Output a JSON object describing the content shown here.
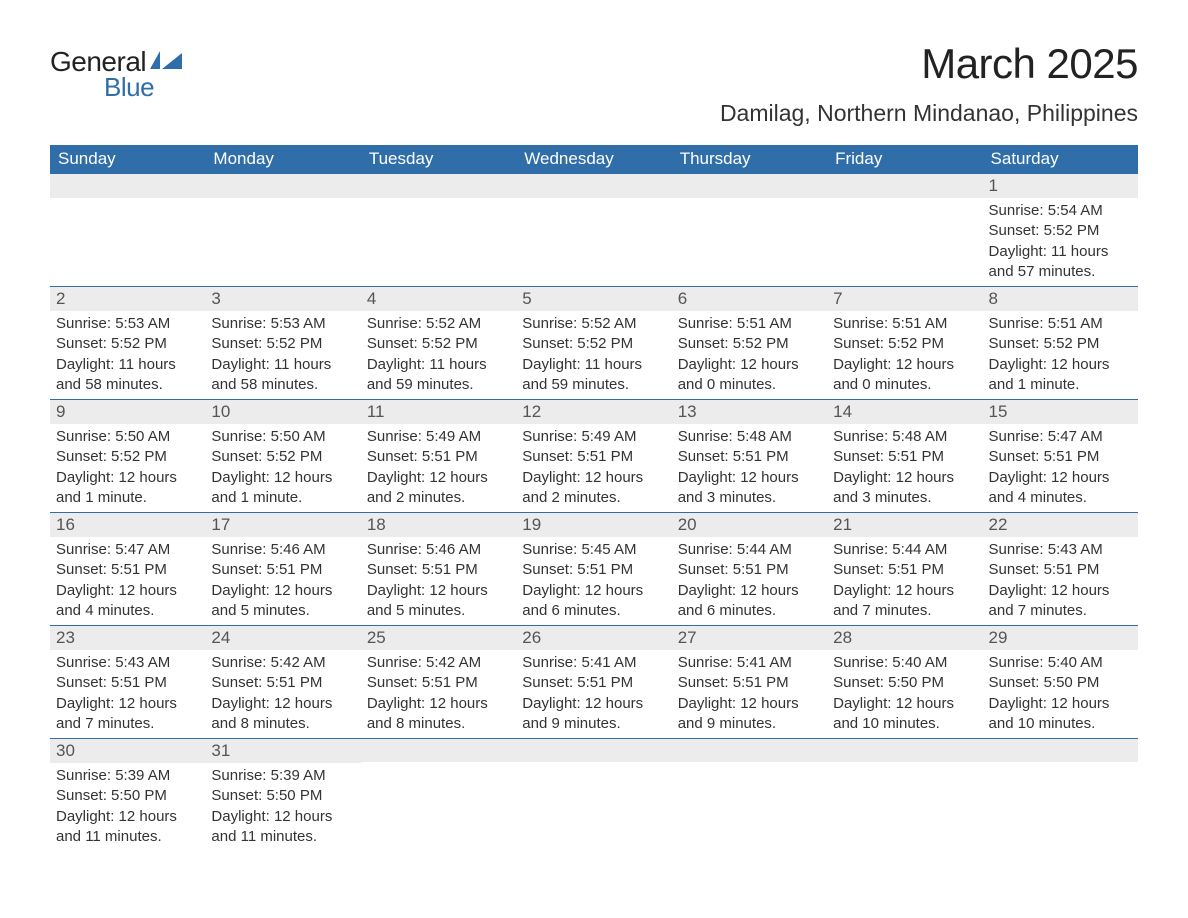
{
  "logo": {
    "text1": "General",
    "text2": "Blue",
    "flag_color": "#2f6ea9"
  },
  "title": "March 2025",
  "location": "Damilag, Northern Mindanao, Philippines",
  "colors": {
    "header_bg": "#2f6ea9",
    "header_text": "#ffffff",
    "daynum_bg": "#ececec",
    "daynum_text": "#555555",
    "body_text": "#333333",
    "row_divider": "#2f6ea9",
    "page_bg": "#ffffff"
  },
  "typography": {
    "title_fontsize": 42,
    "location_fontsize": 23,
    "header_fontsize": 17,
    "daynum_fontsize": 17,
    "detail_fontsize": 15,
    "font_family": "Arial"
  },
  "dayHeaders": [
    "Sunday",
    "Monday",
    "Tuesday",
    "Wednesday",
    "Thursday",
    "Friday",
    "Saturday"
  ],
  "weeks": [
    [
      null,
      null,
      null,
      null,
      null,
      null,
      {
        "n": "1",
        "sr": "5:54 AM",
        "ss": "5:52 PM",
        "dl": "11 hours and 57 minutes."
      }
    ],
    [
      {
        "n": "2",
        "sr": "5:53 AM",
        "ss": "5:52 PM",
        "dl": "11 hours and 58 minutes."
      },
      {
        "n": "3",
        "sr": "5:53 AM",
        "ss": "5:52 PM",
        "dl": "11 hours and 58 minutes."
      },
      {
        "n": "4",
        "sr": "5:52 AM",
        "ss": "5:52 PM",
        "dl": "11 hours and 59 minutes."
      },
      {
        "n": "5",
        "sr": "5:52 AM",
        "ss": "5:52 PM",
        "dl": "11 hours and 59 minutes."
      },
      {
        "n": "6",
        "sr": "5:51 AM",
        "ss": "5:52 PM",
        "dl": "12 hours and 0 minutes."
      },
      {
        "n": "7",
        "sr": "5:51 AM",
        "ss": "5:52 PM",
        "dl": "12 hours and 0 minutes."
      },
      {
        "n": "8",
        "sr": "5:51 AM",
        "ss": "5:52 PM",
        "dl": "12 hours and 1 minute."
      }
    ],
    [
      {
        "n": "9",
        "sr": "5:50 AM",
        "ss": "5:52 PM",
        "dl": "12 hours and 1 minute."
      },
      {
        "n": "10",
        "sr": "5:50 AM",
        "ss": "5:52 PM",
        "dl": "12 hours and 1 minute."
      },
      {
        "n": "11",
        "sr": "5:49 AM",
        "ss": "5:51 PM",
        "dl": "12 hours and 2 minutes."
      },
      {
        "n": "12",
        "sr": "5:49 AM",
        "ss": "5:51 PM",
        "dl": "12 hours and 2 minutes."
      },
      {
        "n": "13",
        "sr": "5:48 AM",
        "ss": "5:51 PM",
        "dl": "12 hours and 3 minutes."
      },
      {
        "n": "14",
        "sr": "5:48 AM",
        "ss": "5:51 PM",
        "dl": "12 hours and 3 minutes."
      },
      {
        "n": "15",
        "sr": "5:47 AM",
        "ss": "5:51 PM",
        "dl": "12 hours and 4 minutes."
      }
    ],
    [
      {
        "n": "16",
        "sr": "5:47 AM",
        "ss": "5:51 PM",
        "dl": "12 hours and 4 minutes."
      },
      {
        "n": "17",
        "sr": "5:46 AM",
        "ss": "5:51 PM",
        "dl": "12 hours and 5 minutes."
      },
      {
        "n": "18",
        "sr": "5:46 AM",
        "ss": "5:51 PM",
        "dl": "12 hours and 5 minutes."
      },
      {
        "n": "19",
        "sr": "5:45 AM",
        "ss": "5:51 PM",
        "dl": "12 hours and 6 minutes."
      },
      {
        "n": "20",
        "sr": "5:44 AM",
        "ss": "5:51 PM",
        "dl": "12 hours and 6 minutes."
      },
      {
        "n": "21",
        "sr": "5:44 AM",
        "ss": "5:51 PM",
        "dl": "12 hours and 7 minutes."
      },
      {
        "n": "22",
        "sr": "5:43 AM",
        "ss": "5:51 PM",
        "dl": "12 hours and 7 minutes."
      }
    ],
    [
      {
        "n": "23",
        "sr": "5:43 AM",
        "ss": "5:51 PM",
        "dl": "12 hours and 7 minutes."
      },
      {
        "n": "24",
        "sr": "5:42 AM",
        "ss": "5:51 PM",
        "dl": "12 hours and 8 minutes."
      },
      {
        "n": "25",
        "sr": "5:42 AM",
        "ss": "5:51 PM",
        "dl": "12 hours and 8 minutes."
      },
      {
        "n": "26",
        "sr": "5:41 AM",
        "ss": "5:51 PM",
        "dl": "12 hours and 9 minutes."
      },
      {
        "n": "27",
        "sr": "5:41 AM",
        "ss": "5:51 PM",
        "dl": "12 hours and 9 minutes."
      },
      {
        "n": "28",
        "sr": "5:40 AM",
        "ss": "5:50 PM",
        "dl": "12 hours and 10 minutes."
      },
      {
        "n": "29",
        "sr": "5:40 AM",
        "ss": "5:50 PM",
        "dl": "12 hours and 10 minutes."
      }
    ],
    [
      {
        "n": "30",
        "sr": "5:39 AM",
        "ss": "5:50 PM",
        "dl": "12 hours and 11 minutes."
      },
      {
        "n": "31",
        "sr": "5:39 AM",
        "ss": "5:50 PM",
        "dl": "12 hours and 11 minutes."
      },
      null,
      null,
      null,
      null,
      null
    ]
  ],
  "labels": {
    "sunrise": "Sunrise: ",
    "sunset": "Sunset: ",
    "daylight": "Daylight: "
  }
}
